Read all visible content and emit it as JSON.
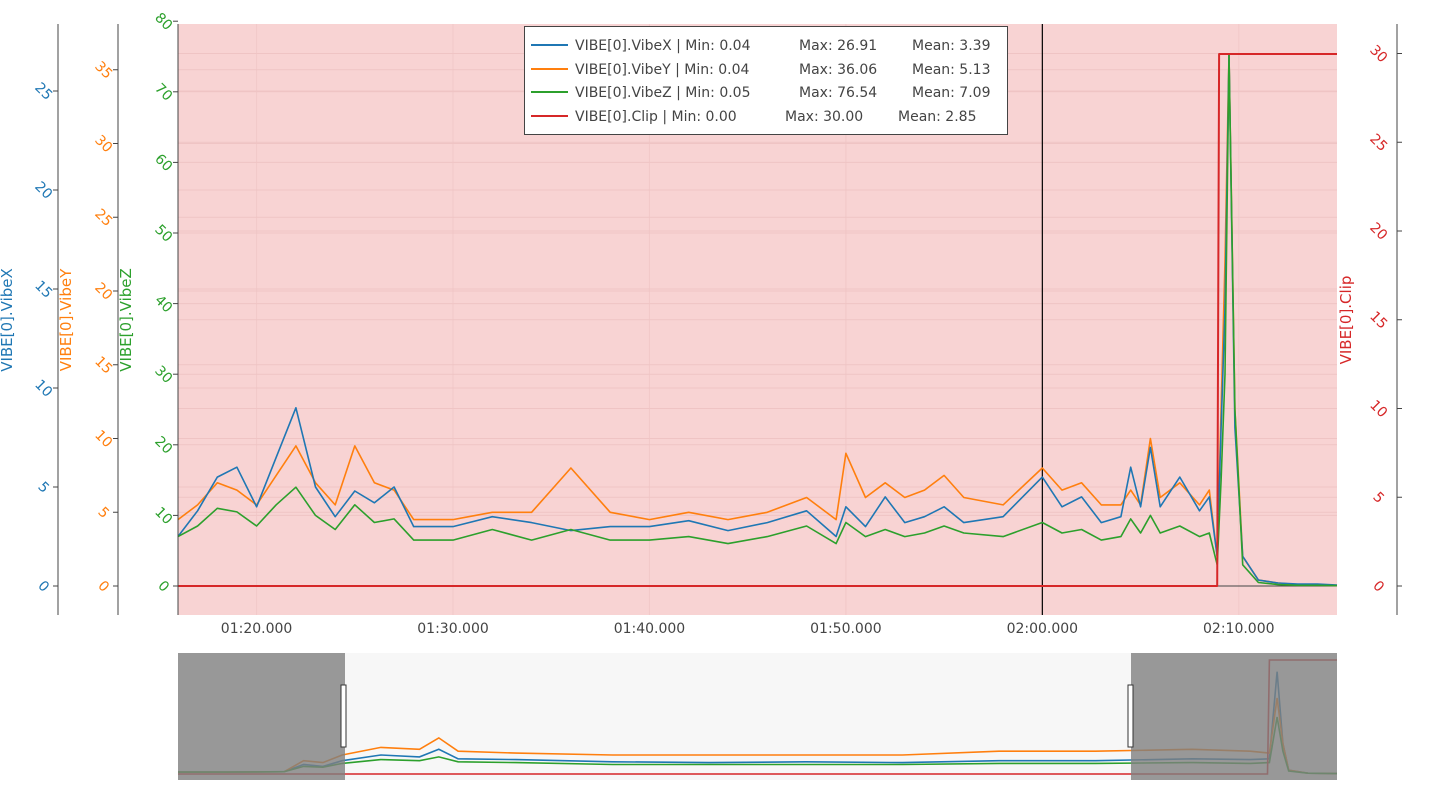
{
  "chart_data": {
    "type": "line",
    "x_unit": "time",
    "x_ticks": [
      "01:20.000",
      "01:30.000",
      "01:40.000",
      "01:50.000",
      "02:00.000",
      "02:10.000"
    ],
    "x_tick_seconds": [
      80,
      90,
      100,
      110,
      120,
      130
    ],
    "x_view_seconds": [
      76,
      135
    ],
    "x_full_range_seconds": [
      67.5,
      127.5
    ],
    "cursor_x_seconds": 120,
    "cursor_x_label": "02:00.000",
    "shaded_region": {
      "x_seconds": [
        76,
        135
      ],
      "color": "#f8d3d3"
    },
    "axes": [
      {
        "id": "vibex",
        "label": "VIBE[0].VibeX",
        "side": "left",
        "color": "#1f77b4",
        "ticks": [
          0,
          5,
          10,
          15,
          20,
          25
        ],
        "range": [
          -1.5,
          28
        ]
      },
      {
        "id": "vibey",
        "label": "VIBE[0].VibeY",
        "side": "left",
        "color": "#ff7f0e",
        "ticks": [
          0,
          5,
          10,
          15,
          20,
          25,
          30,
          35
        ],
        "range": [
          -2.0,
          38
        ]
      },
      {
        "id": "vibez",
        "label": "VIBE[0].VibeZ",
        "side": "left",
        "color": "#2ca02c",
        "ticks": [
          0,
          10,
          20,
          30,
          40,
          50,
          60,
          70,
          80
        ],
        "range": [
          -4.5,
          80.5
        ]
      },
      {
        "id": "clip",
        "label": "VIBE[0].Clip",
        "side": "right",
        "color": "#d62728",
        "ticks": [
          0,
          5,
          10,
          15,
          20,
          25,
          30
        ],
        "range": [
          -1.6,
          31.5
        ]
      }
    ],
    "legend_position": "top-center",
    "series": [
      {
        "name": "VIBE[0].VibeX",
        "axis": "vibex",
        "color": "#1f77b4",
        "legend": [
          "VIBE[0].VibeX | Min: 0.04",
          "Max: 26.91",
          "Mean: 3.39"
        ],
        "min": 0.04,
        "max": 26.91,
        "mean": 3.39,
        "x": [
          76,
          77,
          78,
          79,
          80,
          81,
          82,
          83,
          84,
          85,
          86,
          87,
          88,
          90,
          92,
          94,
          96,
          98,
          100,
          102,
          104,
          106,
          108,
          109.5,
          110,
          111,
          112,
          113,
          114,
          115,
          116,
          118,
          120,
          121,
          122,
          123,
          124,
          124.5,
          125,
          125.5,
          126,
          127,
          128,
          128.5,
          128.9,
          129.1,
          129.3,
          129.5,
          129.8,
          130.2,
          131,
          132,
          133,
          134,
          135
        ],
        "y": [
          2.5,
          3.8,
          5.5,
          6.0,
          4.0,
          6.5,
          9.0,
          5.0,
          3.5,
          4.8,
          4.2,
          5.0,
          3.0,
          3.0,
          3.5,
          3.2,
          2.8,
          3.0,
          3.0,
          3.3,
          2.8,
          3.2,
          3.8,
          2.5,
          4.0,
          3.0,
          4.5,
          3.2,
          3.5,
          4.0,
          3.2,
          3.5,
          5.5,
          4.0,
          4.5,
          3.2,
          3.5,
          6.0,
          4.0,
          7.0,
          4.0,
          5.5,
          3.8,
          4.5,
          1.5,
          8.0,
          14.0,
          26.91,
          8.0,
          1.5,
          0.3,
          0.15,
          0.1,
          0.1,
          0.05
        ]
      },
      {
        "name": "VIBE[0].VibeY",
        "axis": "vibey",
        "color": "#ff7f0e",
        "legend": [
          "VIBE[0].VibeY | Min: 0.04",
          "Max: 36.06",
          "Mean: 5.13"
        ],
        "min": 0.04,
        "max": 36.06,
        "mean": 5.13,
        "x": [
          76,
          77,
          78,
          79,
          80,
          81,
          82,
          83,
          84,
          85,
          86,
          87,
          88,
          90,
          92,
          94,
          96,
          98,
          100,
          102,
          104,
          106,
          108,
          109.5,
          110,
          111,
          112,
          113,
          114,
          115,
          116,
          118,
          120,
          121,
          122,
          123,
          124,
          124.5,
          125,
          125.5,
          126,
          127,
          128,
          128.5,
          128.9,
          129.1,
          129.3,
          129.5,
          129.8,
          130.2,
          131,
          132,
          133,
          134,
          135
        ],
        "y": [
          4.5,
          5.5,
          7.0,
          6.5,
          5.5,
          7.5,
          9.5,
          7.0,
          5.5,
          9.5,
          7.0,
          6.5,
          4.5,
          4.5,
          5.0,
          5.0,
          8.0,
          5.0,
          4.5,
          5.0,
          4.5,
          5.0,
          6.0,
          4.5,
          9.0,
          6.0,
          7.0,
          6.0,
          6.5,
          7.5,
          6.0,
          5.5,
          8.0,
          6.5,
          7.0,
          5.5,
          5.5,
          6.5,
          5.5,
          10.0,
          6.0,
          7.0,
          5.5,
          6.5,
          2.0,
          12.0,
          22.0,
          36.06,
          12.0,
          2.0,
          0.4,
          0.2,
          0.1,
          0.1,
          0.05
        ]
      },
      {
        "name": "VIBE[0].VibeZ",
        "axis": "vibez",
        "color": "#2ca02c",
        "legend": [
          "VIBE[0].VibeZ | Min: 0.05",
          "Max: 76.54",
          "Mean: 7.09"
        ],
        "min": 0.05,
        "max": 76.54,
        "mean": 7.09,
        "x": [
          76,
          77,
          78,
          79,
          80,
          81,
          82,
          83,
          84,
          85,
          86,
          87,
          88,
          90,
          92,
          94,
          96,
          98,
          100,
          102,
          104,
          106,
          108,
          109.5,
          110,
          111,
          112,
          113,
          114,
          115,
          116,
          118,
          120,
          121,
          122,
          123,
          124,
          124.5,
          125,
          125.5,
          126,
          127,
          128,
          128.5,
          128.9,
          129.1,
          129.3,
          129.5,
          129.8,
          130.2,
          131,
          132,
          133,
          134,
          135
        ],
        "y": [
          7.0,
          8.5,
          11.0,
          10.5,
          8.5,
          11.5,
          14.0,
          10.0,
          8.0,
          11.5,
          9.0,
          9.5,
          6.5,
          6.5,
          8.0,
          6.5,
          8.0,
          6.5,
          6.5,
          7.0,
          6.0,
          7.0,
          8.5,
          6.0,
          9.0,
          7.0,
          8.0,
          7.0,
          7.5,
          8.5,
          7.5,
          7.0,
          9.0,
          7.5,
          8.0,
          6.5,
          7.0,
          9.5,
          7.5,
          10.0,
          7.5,
          8.5,
          7.0,
          7.5,
          3.0,
          15.0,
          30.0,
          76.54,
          25.0,
          3.0,
          0.5,
          0.2,
          0.1,
          0.1,
          0.05
        ]
      },
      {
        "name": "VIBE[0].Clip",
        "axis": "clip",
        "color": "#d62728",
        "legend": [
          "VIBE[0].Clip | Min: 0.00",
          "Max: 30.00",
          "Mean: 2.85"
        ],
        "min": 0.0,
        "max": 30.0,
        "mean": 2.85,
        "x": [
          76,
          128.9,
          129.0,
          135
        ],
        "y": [
          0,
          0,
          30,
          30
        ]
      }
    ],
    "range_slider": {
      "window_seconds": [
        76,
        135
      ],
      "overview_series": [
        {
          "name": "VIBE[0].VibeX",
          "color": "#1f77b4",
          "x": [
            67.5,
            70,
            73,
            74,
            75,
            76,
            78,
            80,
            81,
            82,
            85,
            90,
            95,
            100,
            105,
            110,
            115,
            120,
            123,
            124,
            124.4,
            124.7,
            125,
            126,
            127.5
          ],
          "y": [
            0.5,
            0.5,
            0.6,
            2.5,
            2.0,
            3.5,
            5.0,
            4.5,
            6.5,
            4.0,
            3.8,
            3.2,
            3.0,
            3.2,
            3.0,
            3.5,
            3.5,
            4.0,
            3.8,
            4.0,
            26.91,
            8.0,
            1.0,
            0.2,
            0.1
          ]
        },
        {
          "name": "VIBE[0].VibeY",
          "color": "#ff7f0e",
          "x": [
            67.5,
            70,
            73,
            74,
            75,
            76,
            78,
            80,
            81,
            82,
            85,
            90,
            95,
            100,
            105,
            110,
            115,
            120,
            123,
            124,
            124.4,
            124.7,
            125,
            126,
            127.5
          ],
          "y": [
            0.5,
            0.5,
            0.6,
            3.5,
            3.0,
            5.0,
            7.0,
            6.5,
            9.5,
            6.0,
            5.5,
            5.0,
            5.0,
            5.0,
            5.0,
            6.0,
            6.0,
            6.5,
            6.0,
            5.5,
            20.0,
            8.0,
            1.0,
            0.2,
            0.1
          ]
        },
        {
          "name": "VIBE[0].VibeZ",
          "color": "#2ca02c",
          "x": [
            67.5,
            70,
            73,
            74,
            75,
            76,
            78,
            80,
            81,
            82,
            85,
            90,
            95,
            100,
            105,
            110,
            115,
            120,
            123,
            124,
            124.4,
            124.7,
            125,
            126,
            127.5
          ],
          "y": [
            0.5,
            0.5,
            0.6,
            2.0,
            1.8,
            2.8,
            3.8,
            3.5,
            4.5,
            3.2,
            3.0,
            2.5,
            2.5,
            2.5,
            2.5,
            2.8,
            2.8,
            3.0,
            2.8,
            3.0,
            15.0,
            6.0,
            0.8,
            0.2,
            0.1
          ]
        },
        {
          "name": "VIBE[0].Clip",
          "color": "#d62728",
          "x": [
            67.5,
            123.9,
            124.0,
            127.5
          ],
          "y": [
            0,
            0,
            30,
            30
          ]
        }
      ]
    }
  }
}
